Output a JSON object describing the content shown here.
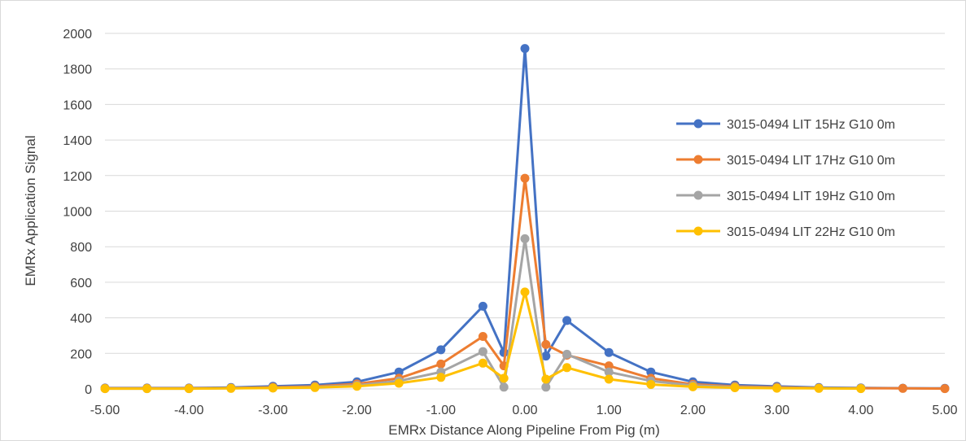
{
  "chart_data": {
    "type": "line",
    "title": "",
    "xlabel": "EMRx Distance Along Pipeline From Pig (m)",
    "ylabel": "EMRx Application Signal",
    "xlim": [
      -5,
      5
    ],
    "ylim": [
      0,
      2000
    ],
    "x_ticks": [
      "-5.00",
      "-4.00",
      "-3.00",
      "-2.00",
      "-1.00",
      "0.00",
      "1.00",
      "2.00",
      "3.00",
      "4.00",
      "5.00"
    ],
    "y_ticks": [
      "0",
      "200",
      "400",
      "600",
      "800",
      "1000",
      "1200",
      "1400",
      "1600",
      "1800",
      "2000"
    ],
    "grid": "horizontal",
    "legend_position": "right",
    "series": [
      {
        "name": "3015-0494 LIT 15Hz G10 0m",
        "color": "#4472C4",
        "x": [
          -5,
          -4.5,
          -4,
          -3.5,
          -3,
          -2.5,
          -2,
          -1.5,
          -1,
          -0.5,
          -0.25,
          0,
          0.25,
          0.5,
          1,
          1.5,
          2,
          2.5,
          3,
          3.5,
          4,
          4.5,
          5
        ],
        "y": [
          5,
          5,
          5,
          8,
          15,
          22,
          40,
          95,
          220,
          465,
          205,
          1915,
          185,
          385,
          205,
          95,
          40,
          22,
          14,
          8,
          6,
          4,
          3
        ]
      },
      {
        "name": "3015-0494 LIT 17Hz G10 0m",
        "color": "#ED7D31",
        "x": [
          -5,
          -4.5,
          -4,
          -3.5,
          -3,
          -2.5,
          -2,
          -1.5,
          -1,
          -0.5,
          -0.25,
          0,
          0.25,
          0.5,
          1,
          1.5,
          2,
          2.5,
          3,
          3.5,
          4,
          4.5,
          5
        ],
        "y": [
          3,
          3,
          3,
          5,
          9,
          14,
          28,
          60,
          140,
          295,
          130,
          1185,
          250,
          190,
          130,
          60,
          26,
          14,
          9,
          5,
          4,
          3,
          2
        ]
      },
      {
        "name": "3015-0494 LIT 19Hz G10 0m",
        "color": "#A5A5A5",
        "x": [
          -5,
          -4.5,
          -4,
          -3.5,
          -3,
          -2.5,
          -2,
          -1.5,
          -1,
          -0.5,
          -0.25,
          0,
          0.25,
          0.5,
          1,
          1.5,
          2,
          2.5,
          3,
          3.5,
          4
        ],
        "y": [
          2,
          2,
          2,
          4,
          6,
          10,
          20,
          45,
          95,
          210,
          10,
          845,
          10,
          195,
          95,
          45,
          19,
          10,
          6,
          4,
          3
        ]
      },
      {
        "name": "3015-0494 LIT 22Hz G10 0m",
        "color": "#FFC000",
        "x": [
          -5,
          -4.5,
          -4,
          -3.5,
          -3,
          -2.5,
          -2,
          -1.5,
          -1,
          -0.5,
          -0.25,
          0,
          0.25,
          0.5,
          1,
          1.5,
          2,
          2.5,
          3,
          3.5,
          4
        ],
        "y": [
          2,
          2,
          2,
          3,
          5,
          8,
          15,
          32,
          65,
          145,
          60,
          545,
          55,
          120,
          55,
          25,
          12,
          7,
          4,
          3,
          2
        ]
      }
    ]
  }
}
